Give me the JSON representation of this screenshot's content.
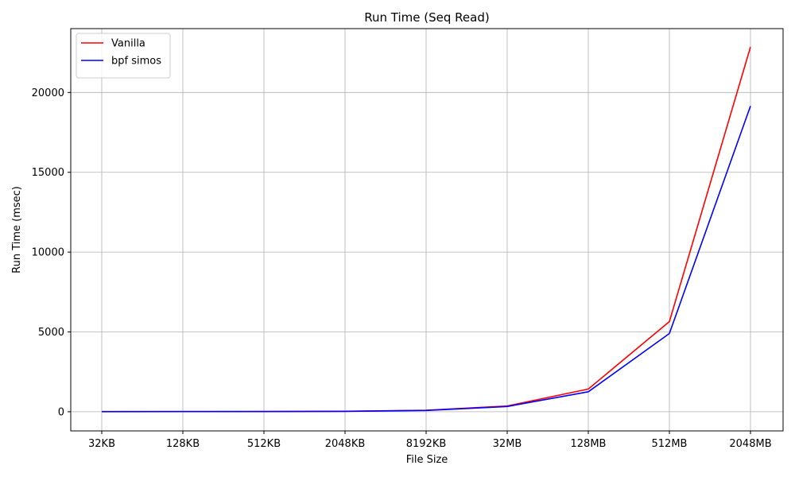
{
  "chart_data": {
    "type": "line",
    "title": "Run Time (Seq Read)",
    "xlabel": "File Size",
    "ylabel": "Run Time (msec)",
    "categories": [
      "32KB",
      "128KB",
      "512KB",
      "2048KB",
      "8192KB",
      "32MB",
      "128MB",
      "512MB",
      "2048MB"
    ],
    "ylim": [
      -1200,
      24000
    ],
    "yticks": [
      0,
      5000,
      10000,
      15000,
      20000
    ],
    "grid": true,
    "legend_position": "top-left",
    "series": [
      {
        "name": "Vanilla",
        "color": "#ff0000",
        "values": [
          8,
          10,
          14,
          30,
          90,
          360,
          1420,
          5650,
          22850
        ]
      },
      {
        "name": "bpf simos",
        "color": "#0000ff",
        "values": [
          6,
          8,
          12,
          25,
          80,
          330,
          1250,
          4900,
          19150
        ]
      }
    ]
  }
}
